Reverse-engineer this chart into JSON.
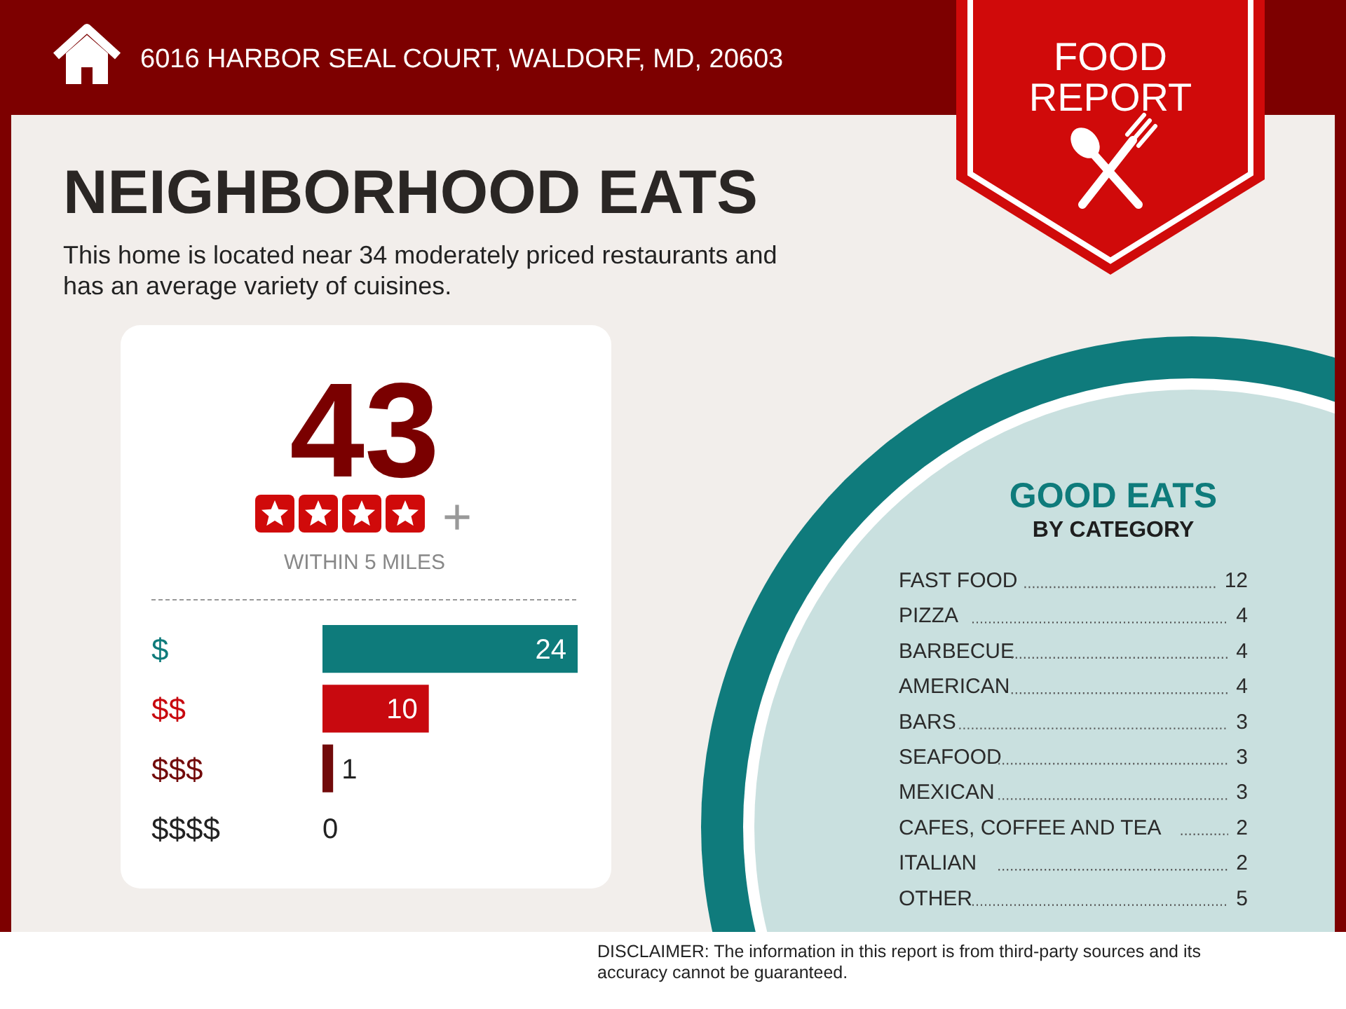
{
  "chart_data": [
    {
      "type": "bar",
      "orientation": "horizontal",
      "title": "NEIGHBORHOOD EATS",
      "subtitle": "This home is located near 34 moderately priced restaurants and has an average variety of cuisines.",
      "categories": [
        "$",
        "$$",
        "$$$",
        "$$$$"
      ],
      "values": [
        24,
        10,
        1,
        0
      ],
      "colors": [
        "#0e7b7b",
        "#c8090f",
        "#720a0a",
        "#222222"
      ],
      "data_labels": true,
      "annotations": [
        "6016 HARBOR SEAL COURT, WALDORF, MD, 20603",
        "FOOD REPORT",
        "43",
        "+",
        "WITHIN 5 MILES",
        "DISCLAIMER: The information in this report is from third-party sources and its accuracy cannot be guaranteed."
      ]
    },
    {
      "type": "other",
      "title": "GOOD EATS",
      "subtitle": "BY CATEGORY",
      "categories": [
        "FAST FOOD",
        "PIZZA",
        "BARBECUE",
        "AMERICAN",
        "BARS",
        "SEAFOOD",
        "MEXICAN",
        "CAFES, COFFEE AND TEA",
        "ITALIAN",
        "OTHER"
      ],
      "values": [
        12,
        4,
        4,
        4,
        3,
        3,
        3,
        2,
        2,
        5
      ],
      "data_labels": true
    }
  ]
}
